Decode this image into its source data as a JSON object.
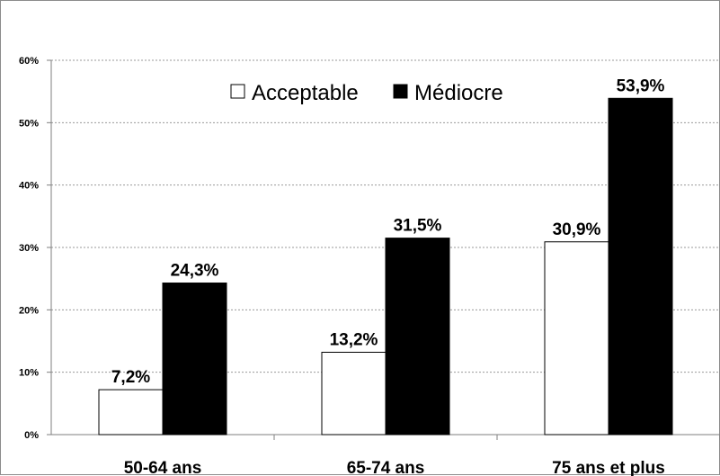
{
  "chart_data": {
    "type": "bar",
    "categories": [
      "50-64 ans",
      "65-74 ans",
      "75 ans et plus"
    ],
    "series": [
      {
        "name": "Acceptable",
        "values": [
          7.2,
          13.2,
          30.9
        ],
        "labels": [
          "7,2%",
          "13,2%",
          "30,9%"
        ],
        "color": "#ffffff"
      },
      {
        "name": "Médiocre",
        "values": [
          24.3,
          31.5,
          53.9
        ],
        "labels": [
          "24,3%",
          "31,5%",
          "53,9%"
        ],
        "color": "#000000"
      }
    ],
    "ylim": [
      0,
      60
    ],
    "yticks": [
      {
        "value": 0,
        "label": "0%"
      },
      {
        "value": 10,
        "label": "10%"
      },
      {
        "value": 20,
        "label": "20%"
      },
      {
        "value": 30,
        "label": "30%"
      },
      {
        "value": 40,
        "label": "40%"
      },
      {
        "value": 50,
        "label": "50%"
      },
      {
        "value": 60,
        "label": "60%"
      }
    ],
    "grid": true,
    "legend_position": "top-center",
    "title": "",
    "xlabel": "",
    "ylabel": ""
  }
}
